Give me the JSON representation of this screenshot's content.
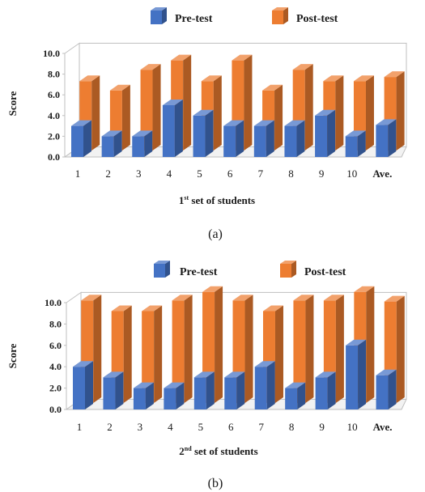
{
  "panels": [
    {
      "caption": "(a)",
      "xlabel_main": "1",
      "xlabel_sup": "st",
      "xlabel_rest": " set of students"
    },
    {
      "caption": "(b)",
      "xlabel_main": "2",
      "xlabel_sup": "nd",
      "xlabel_rest": " set of students"
    }
  ],
  "colors": {
    "pretest": "#4472C4",
    "posttest": "#ED7D31"
  },
  "chart_data": [
    {
      "type": "bar",
      "ylabel": "Score",
      "xlabel": "1st set of students",
      "ylim": [
        0,
        10
      ],
      "yticks": [
        "0.0",
        "2.0",
        "4.0",
        "6.0",
        "8.0",
        "10.0"
      ],
      "categories": [
        "1",
        "2",
        "3",
        "4",
        "5",
        "6",
        "7",
        "8",
        "9",
        "10",
        "Ave."
      ],
      "series": [
        {
          "name": "Pre-test",
          "values": [
            3,
            2,
            2,
            5,
            4,
            3,
            3,
            3,
            4,
            2,
            3.1
          ]
        },
        {
          "name": "Post-test",
          "values": [
            6.7,
            5.8,
            7.8,
            8.7,
            6.7,
            8.7,
            5.8,
            7.8,
            6.7,
            6.7,
            7.1
          ]
        }
      ],
      "legend": "top",
      "grid": false
    },
    {
      "type": "bar",
      "ylabel": "Score",
      "xlabel": "2nd set of students",
      "ylim": [
        0,
        10
      ],
      "yticks": [
        "0.0",
        "2.0",
        "4.0",
        "6.0",
        "8.0",
        "10.0"
      ],
      "categories": [
        "1",
        "2",
        "3",
        "4",
        "5",
        "6",
        "7",
        "8",
        "9",
        "10",
        "Ave."
      ],
      "series": [
        {
          "name": "Pre-test",
          "values": [
            4,
            3,
            2,
            2,
            3,
            3,
            4,
            2,
            3,
            6,
            3.2
          ]
        },
        {
          "name": "Post-test",
          "values": [
            9.6,
            8.6,
            8.6,
            9.6,
            10.4,
            9.6,
            8.6,
            9.6,
            9.6,
            10.4,
            9.5
          ]
        }
      ],
      "legend": "top",
      "grid": false
    }
  ]
}
